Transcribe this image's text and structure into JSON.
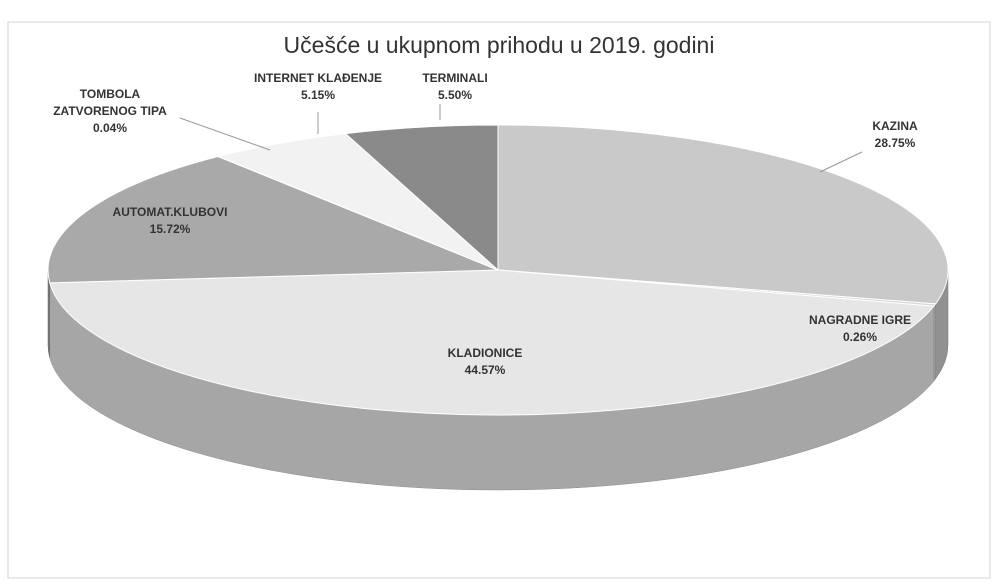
{
  "chart_data": {
    "type": "pie3d",
    "title": "Učešće u ukupnom prihodu u 2019. godini",
    "categories": [
      "KAZINA",
      "NAGRADNE IGRE",
      "KLADIONICE",
      "AUTOMAT.KLUBOVI",
      "TOMBOLA ZATVORENOG TIPA",
      "INTERNET KLAĐENJE",
      "TERMINALI"
    ],
    "values": [
      28.75,
      0.26,
      44.57,
      15.72,
      0.04,
      5.15,
      5.5
    ],
    "value_labels": [
      "28.75%",
      "0.26%",
      "44.57%",
      "15.72%",
      "0.04%",
      "5.15%",
      "5.50%"
    ],
    "colors": [
      "#c9c9c9",
      "#d6d6d6",
      "#e6e6e6",
      "#a9a9a9",
      "#9a9a9a",
      "#f2f2f2",
      "#8a8a8a"
    ]
  }
}
